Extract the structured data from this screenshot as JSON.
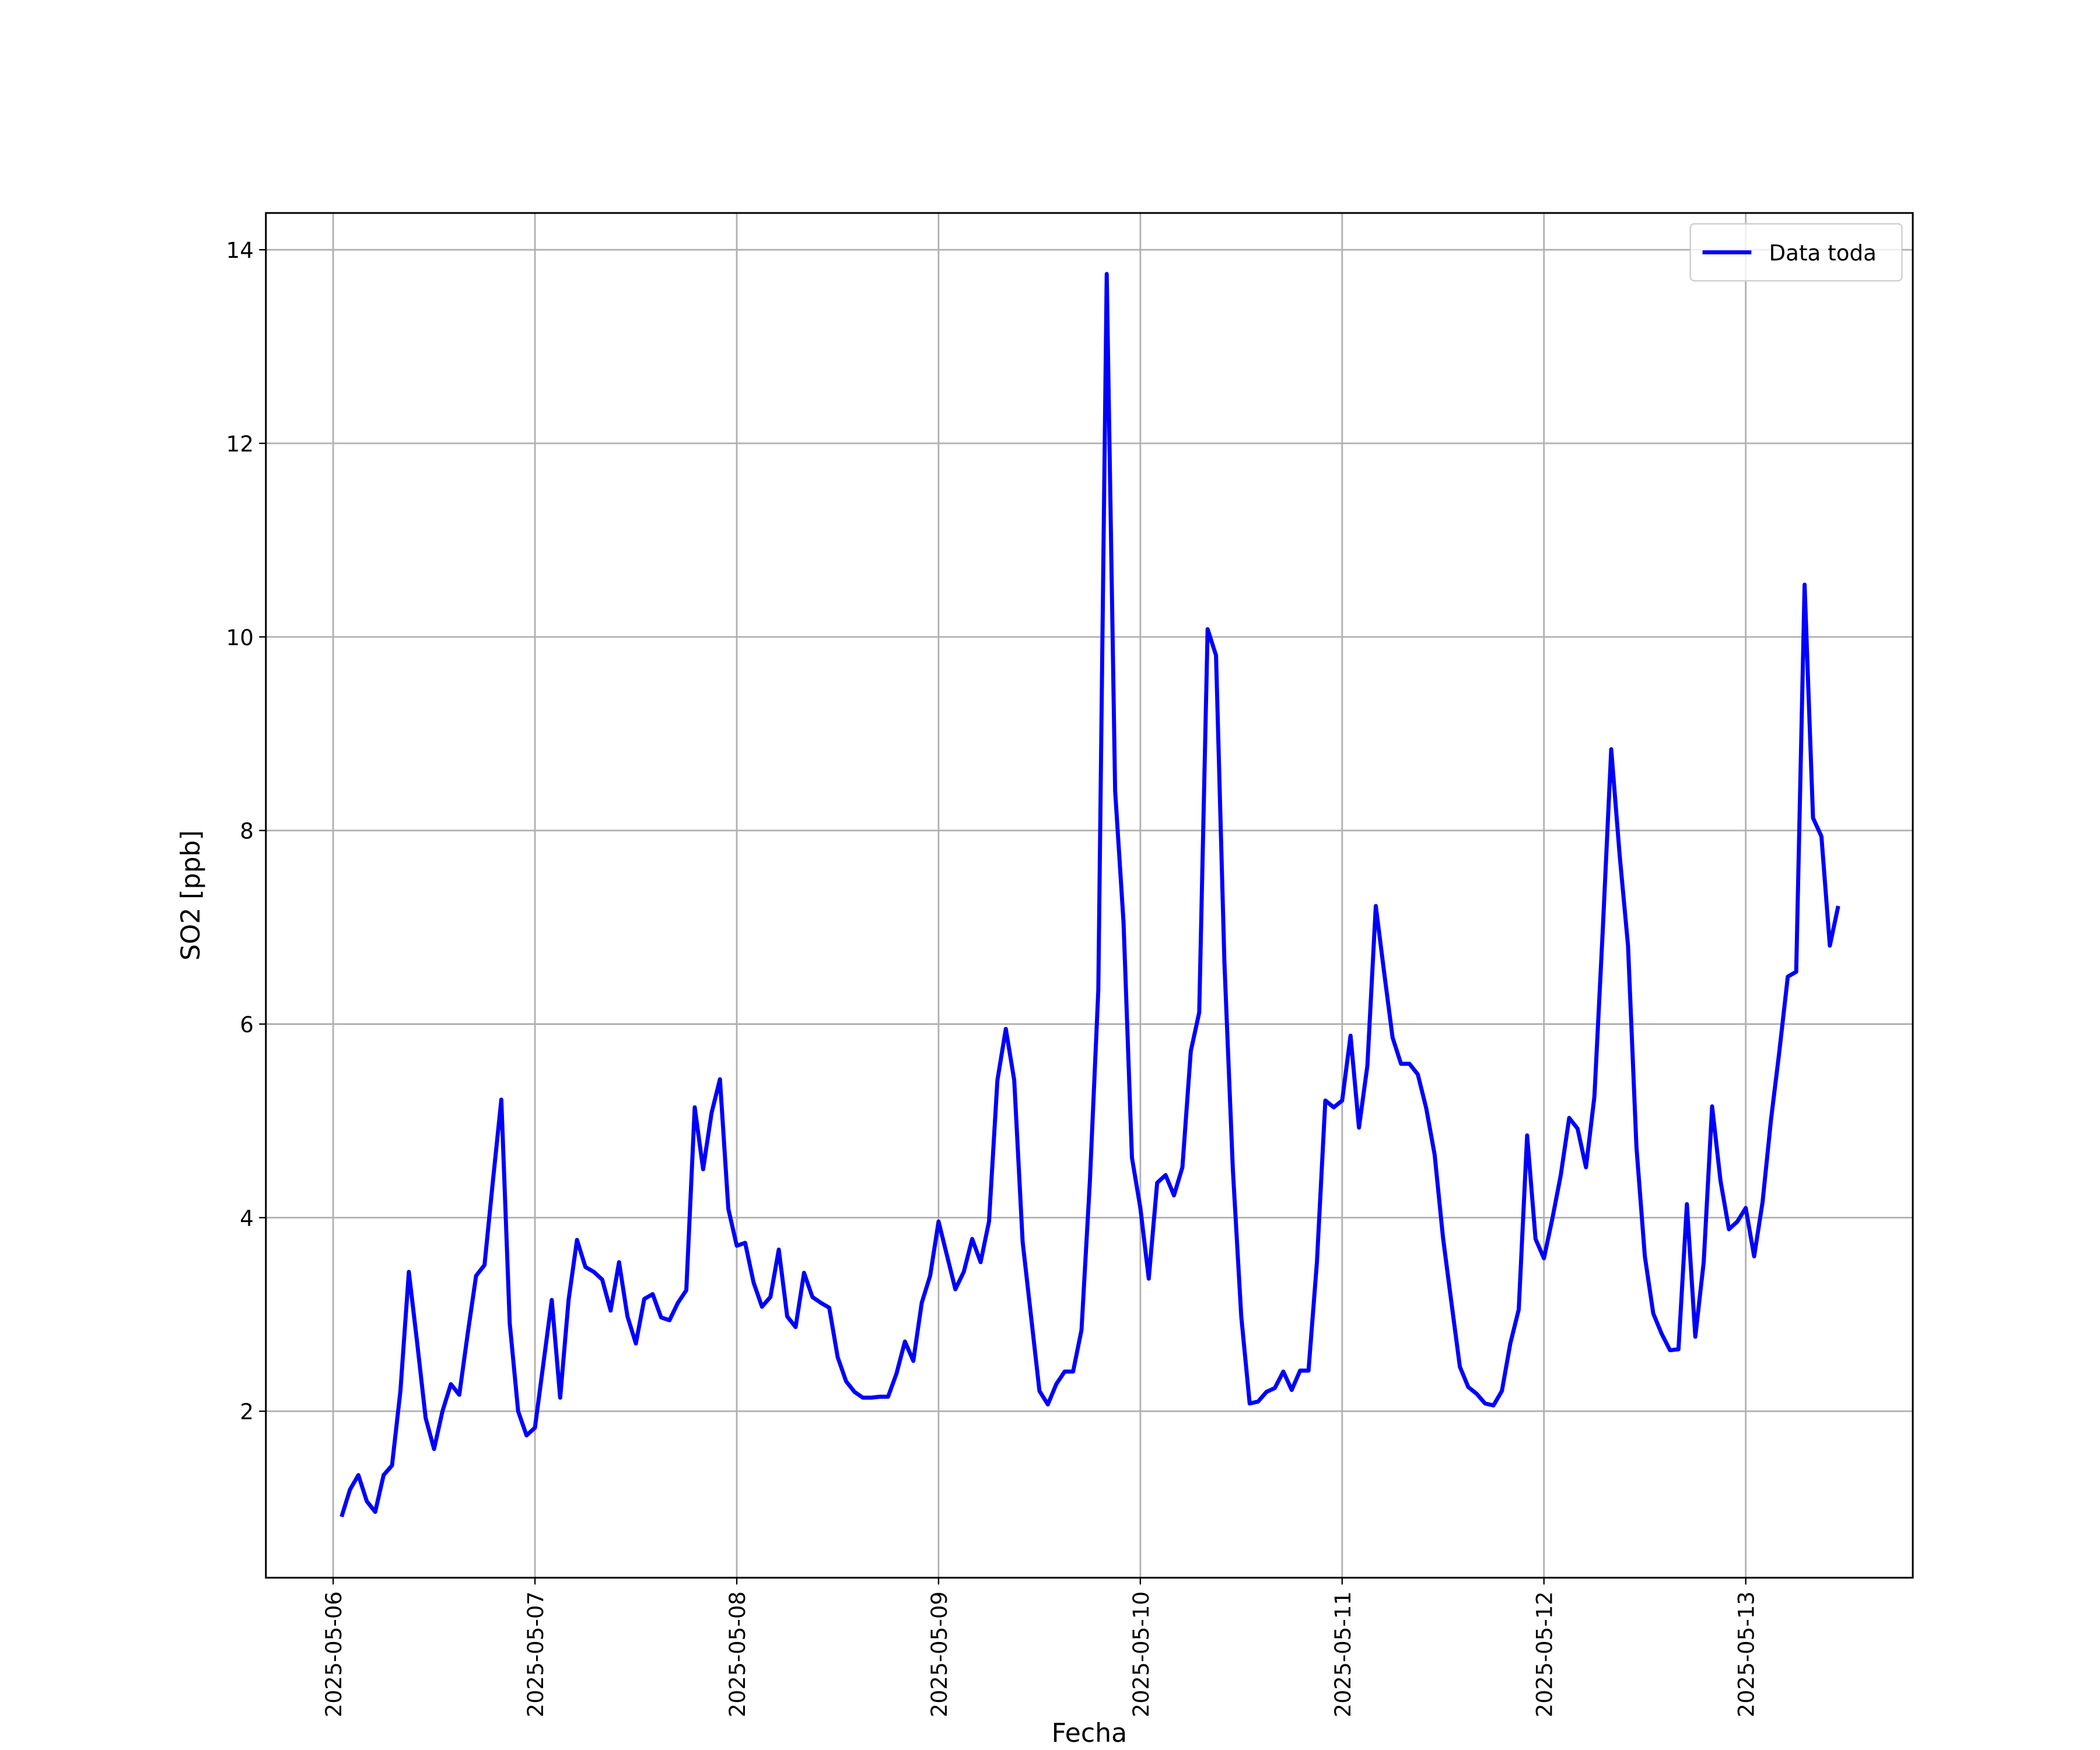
{
  "chart_data": {
    "type": "line",
    "xlabel": "Fecha",
    "ylabel": "SO2 [ppb]",
    "x": [
      "2025-05-06 01:00",
      "2025-05-06 02:00",
      "2025-05-06 03:00",
      "2025-05-06 04:00",
      "2025-05-06 05:00",
      "2025-05-06 06:00",
      "2025-05-06 07:00",
      "2025-05-06 08:00",
      "2025-05-06 09:00",
      "2025-05-06 10:00",
      "2025-05-06 11:00",
      "2025-05-06 12:00",
      "2025-05-06 13:00",
      "2025-05-06 14:00",
      "2025-05-06 15:00",
      "2025-05-06 16:00",
      "2025-05-06 17:00",
      "2025-05-06 18:00",
      "2025-05-06 19:00",
      "2025-05-06 20:00",
      "2025-05-06 21:00",
      "2025-05-06 22:00",
      "2025-05-06 23:00",
      "2025-05-07 00:00",
      "2025-05-07 01:00",
      "2025-05-07 02:00",
      "2025-05-07 03:00",
      "2025-05-07 04:00",
      "2025-05-07 05:00",
      "2025-05-07 06:00",
      "2025-05-07 07:00",
      "2025-05-07 08:00",
      "2025-05-07 09:00",
      "2025-05-07 10:00",
      "2025-05-07 11:00",
      "2025-05-07 12:00",
      "2025-05-07 13:00",
      "2025-05-07 14:00",
      "2025-05-07 15:00",
      "2025-05-07 16:00",
      "2025-05-07 17:00",
      "2025-05-07 18:00",
      "2025-05-07 19:00",
      "2025-05-07 20:00",
      "2025-05-07 21:00",
      "2025-05-07 22:00",
      "2025-05-07 23:00",
      "2025-05-08 00:00",
      "2025-05-08 01:00",
      "2025-05-08 02:00",
      "2025-05-08 03:00",
      "2025-05-08 04:00",
      "2025-05-08 05:00",
      "2025-05-08 06:00",
      "2025-05-08 07:00",
      "2025-05-08 08:00",
      "2025-05-08 09:00",
      "2025-05-08 10:00",
      "2025-05-08 11:00",
      "2025-05-08 12:00",
      "2025-05-08 13:00",
      "2025-05-08 14:00",
      "2025-05-08 15:00",
      "2025-05-08 16:00",
      "2025-05-08 17:00",
      "2025-05-08 18:00",
      "2025-05-08 19:00",
      "2025-05-08 20:00",
      "2025-05-08 21:00",
      "2025-05-08 22:00",
      "2025-05-08 23:00",
      "2025-05-09 00:00",
      "2025-05-09 01:00",
      "2025-05-09 02:00",
      "2025-05-09 03:00",
      "2025-05-09 04:00",
      "2025-05-09 05:00",
      "2025-05-09 06:00",
      "2025-05-09 07:00",
      "2025-05-09 08:00",
      "2025-05-09 09:00",
      "2025-05-09 10:00",
      "2025-05-09 11:00",
      "2025-05-09 12:00",
      "2025-05-09 13:00",
      "2025-05-09 14:00",
      "2025-05-09 15:00",
      "2025-05-09 16:00",
      "2025-05-09 17:00",
      "2025-05-09 18:00",
      "2025-05-09 19:00",
      "2025-05-09 20:00",
      "2025-05-09 21:00",
      "2025-05-09 22:00",
      "2025-05-09 23:00",
      "2025-05-10 00:00",
      "2025-05-10 01:00",
      "2025-05-10 02:00",
      "2025-05-10 03:00",
      "2025-05-10 04:00",
      "2025-05-10 05:00",
      "2025-05-10 06:00",
      "2025-05-10 07:00",
      "2025-05-10 08:00",
      "2025-05-10 09:00",
      "2025-05-10 10:00",
      "2025-05-10 11:00",
      "2025-05-10 12:00",
      "2025-05-10 13:00",
      "2025-05-10 14:00",
      "2025-05-10 15:00",
      "2025-05-10 16:00",
      "2025-05-10 17:00",
      "2025-05-10 18:00",
      "2025-05-10 19:00",
      "2025-05-10 20:00",
      "2025-05-10 21:00",
      "2025-05-10 22:00",
      "2025-05-10 23:00",
      "2025-05-11 00:00",
      "2025-05-11 01:00",
      "2025-05-11 02:00",
      "2025-05-11 03:00",
      "2025-05-11 04:00",
      "2025-05-11 05:00",
      "2025-05-11 06:00",
      "2025-05-11 07:00",
      "2025-05-11 08:00",
      "2025-05-11 09:00",
      "2025-05-11 10:00",
      "2025-05-11 11:00",
      "2025-05-11 12:00",
      "2025-05-11 13:00",
      "2025-05-11 14:00",
      "2025-05-11 15:00",
      "2025-05-11 16:00",
      "2025-05-11 17:00",
      "2025-05-11 18:00",
      "2025-05-11 19:00",
      "2025-05-11 20:00",
      "2025-05-11 21:00",
      "2025-05-11 22:00",
      "2025-05-11 23:00",
      "2025-05-12 00:00",
      "2025-05-12 01:00",
      "2025-05-12 02:00",
      "2025-05-12 03:00",
      "2025-05-12 04:00",
      "2025-05-12 05:00",
      "2025-05-12 06:00",
      "2025-05-12 07:00",
      "2025-05-12 08:00",
      "2025-05-12 09:00",
      "2025-05-12 10:00",
      "2025-05-12 11:00",
      "2025-05-12 12:00",
      "2025-05-12 13:00",
      "2025-05-12 14:00",
      "2025-05-12 15:00",
      "2025-05-12 16:00",
      "2025-05-12 17:00",
      "2025-05-12 18:00",
      "2025-05-12 19:00",
      "2025-05-12 20:00",
      "2025-05-12 21:00",
      "2025-05-12 22:00",
      "2025-05-12 23:00",
      "2025-05-13 00:00",
      "2025-05-13 01:00",
      "2025-05-13 02:00",
      "2025-05-13 03:00",
      "2025-05-13 04:00",
      "2025-05-13 05:00",
      "2025-05-13 06:00",
      "2025-05-13 07:00",
      "2025-05-13 08:00",
      "2025-05-13 09:00",
      "2025-05-13 10:00",
      "2025-05-13 11:00"
    ],
    "series": [
      {
        "name": "Data toda",
        "color": "#0000ff",
        "values": [
          0.91,
          1.19,
          1.34,
          1.07,
          0.96,
          1.34,
          1.44,
          2.21,
          3.44,
          2.7,
          1.93,
          1.61,
          2.0,
          2.28,
          2.17,
          2.8,
          3.4,
          3.51,
          4.38,
          5.22,
          2.91,
          2.0,
          1.75,
          1.83,
          2.49,
          3.15,
          2.14,
          3.15,
          3.77,
          3.49,
          3.44,
          3.36,
          3.04,
          3.54,
          2.98,
          2.7,
          3.16,
          3.21,
          2.97,
          2.94,
          3.12,
          3.25,
          5.14,
          4.5,
          5.08,
          5.43,
          4.09,
          3.71,
          3.74,
          3.33,
          3.08,
          3.18,
          3.67,
          2.98,
          2.87,
          3.43,
          3.18,
          3.12,
          3.07,
          2.56,
          2.31,
          2.2,
          2.14,
          2.14,
          2.15,
          2.15,
          2.39,
          2.72,
          2.52,
          3.12,
          3.4,
          3.96,
          3.61,
          3.26,
          3.44,
          3.78,
          3.54,
          3.96,
          5.42,
          5.95,
          5.42,
          3.75,
          2.98,
          2.21,
          2.07,
          2.28,
          2.41,
          2.41,
          2.84,
          4.38,
          6.35,
          13.75,
          8.41,
          7.05,
          4.62,
          4.1,
          3.37,
          4.36,
          4.44,
          4.23,
          4.52,
          5.72,
          6.12,
          10.08,
          9.81,
          6.63,
          4.5,
          2.98,
          2.08,
          2.1,
          2.2,
          2.24,
          2.41,
          2.22,
          2.42,
          2.42,
          3.54,
          5.21,
          5.14,
          5.21,
          5.88,
          4.93,
          5.57,
          7.22,
          6.53,
          5.86,
          5.59,
          5.59,
          5.48,
          5.13,
          4.65,
          3.79,
          3.12,
          2.46,
          2.25,
          2.18,
          2.08,
          2.06,
          2.21,
          2.7,
          3.05,
          4.85,
          3.78,
          3.58,
          3.99,
          4.44,
          5.03,
          4.92,
          4.52,
          5.25,
          6.98,
          8.84,
          7.75,
          6.81,
          4.73,
          3.6,
          3.01,
          2.8,
          2.63,
          2.64,
          4.14,
          2.77,
          3.54,
          5.15,
          4.38,
          3.88,
          3.96,
          4.1,
          3.6,
          4.16,
          5.01,
          5.72,
          6.49,
          6.54,
          10.54,
          8.13,
          7.94,
          6.81,
          7.22
        ]
      }
    ],
    "xlim": [
      "2025-05-05 16:00",
      "2025-05-13 19:52"
    ],
    "xticks": [
      "2025-05-06",
      "2025-05-07",
      "2025-05-08",
      "2025-05-09",
      "2025-05-10",
      "2025-05-11",
      "2025-05-12",
      "2025-05-13"
    ],
    "ylim": [
      0.28,
      14.38
    ],
    "yticks": [
      2,
      4,
      6,
      8,
      10,
      12,
      14
    ],
    "grid": true,
    "legend": "upper right"
  }
}
